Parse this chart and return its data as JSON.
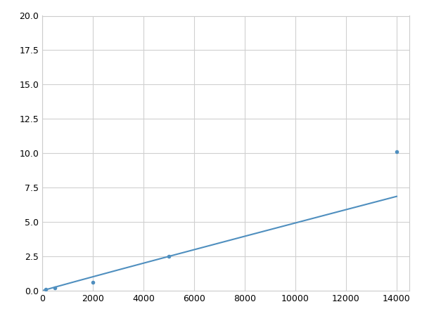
{
  "x_points": [
    125,
    500,
    2000,
    5000,
    14000
  ],
  "y_points": [
    0.1,
    0.2,
    0.6,
    2.5,
    10.1
  ],
  "line_color": "#4f8fbf",
  "marker_color": "#4f8fbf",
  "marker_size": 4,
  "xlim": [
    0,
    14500
  ],
  "ylim": [
    0,
    20.0
  ],
  "xticks": [
    0,
    2000,
    4000,
    6000,
    8000,
    10000,
    12000,
    14000
  ],
  "yticks": [
    0.0,
    2.5,
    5.0,
    7.5,
    10.0,
    12.5,
    15.0,
    17.5,
    20.0
  ],
  "grid_color": "#d0d0d0",
  "background_color": "#ffffff",
  "fig_background": "#ffffff",
  "linewidth": 1.5,
  "power_a": 3.5e-06,
  "power_b": 1.46
}
